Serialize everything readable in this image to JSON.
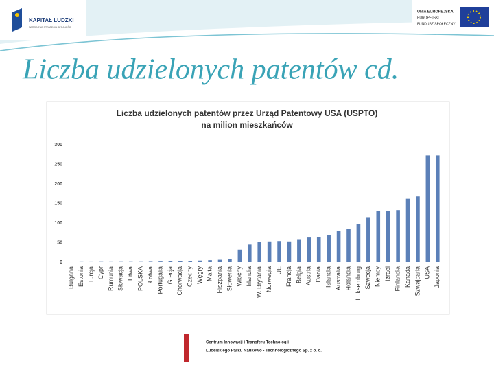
{
  "header": {
    "left_logo": {
      "title": "KAPITAŁ LUDZKI",
      "subtitle": "NARODOWA STRATEGIA SPÓJNOŚCI"
    },
    "right_logo": {
      "lines": [
        "UNIA EUROPEJSKA",
        "EUROPEJSKI",
        "FUNDUSZ SPOŁECZNY"
      ]
    }
  },
  "slide_title": "Liczba udzielonych patentów cd.",
  "chart_data": {
    "type": "bar",
    "title": "Liczba udzielonych patentów przez Urząd Patentowy USA (USPTO)",
    "subtitle": "na milion mieszkańców",
    "categories": [
      "Bulgaria",
      "Estonia",
      "Turcja",
      "Cypr",
      "Rumunia",
      "Słowacja",
      "Litwa",
      "POLSKA",
      "Łotwa",
      "Portugalia",
      "Grecja",
      "Chorwacja",
      "Czechy",
      "Węgry",
      "Malta",
      "Hiszpania",
      "Słowenia",
      "Włochy",
      "Irlandia",
      "W. Brytania",
      "Norwegia",
      "UE",
      "Francja",
      "Belgia",
      "Austria",
      "Dania",
      "Islandia",
      "Australia",
      "Holandia",
      "Luksemburg",
      "Szwecja",
      "Niemcy",
      "Izrael",
      "Finlandia",
      "Kanada",
      "Szwajcaria",
      "USA",
      "Japonia"
    ],
    "values": [
      0,
      0.3,
      0.2,
      0.5,
      0.3,
      0.5,
      0.5,
      0.5,
      1,
      1.5,
      2,
      2,
      3,
      4,
      5,
      6,
      8,
      32,
      45,
      52,
      53,
      54,
      53,
      57,
      63,
      64,
      70,
      80,
      85,
      98,
      115,
      130,
      131,
      133,
      162,
      168,
      273,
      273
    ],
    "color": "#5b80b8",
    "ylim": [
      0,
      300
    ],
    "yticks": [
      0,
      50,
      100,
      150,
      200,
      250,
      300
    ],
    "grid": false
  },
  "footer": {
    "lines": [
      "Centrum Innowacji i Transferu Technologii",
      "Lubelskiego Parku Naukowo - Technologicznego Sp. z o. o."
    ]
  }
}
